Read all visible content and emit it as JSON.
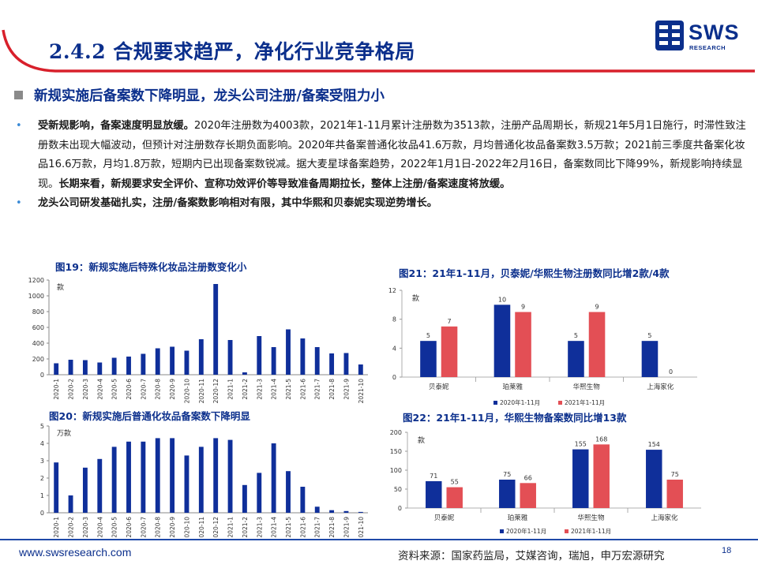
{
  "header": {
    "title": "2.4.2 合规要求趋严，净化行业竞争格局",
    "logo_text": "SWS",
    "logo_sub": "RESEARCH"
  },
  "subtitle": "新规实施后备案数下降明显，龙头公司注册/备案受阻力小",
  "bullets": [
    {
      "bold_lead": "受新规影响，备案速度明显放缓。",
      "body": "2020年注册数为4003款，2021年1-11月累计注册数为3513款，注册产品周期长，新规21年5月1日施行，时滞性致注册数未出现大幅波动，但预计对注册数存长期负面影响。2020年共备案普通化妆品41.6万款，月均普通化妆品备案数3.5万款；2021前三季度共备案化妆品16.6万款，月均1.8万款，短期内已出现备案数锐减。据大麦星球备案趋势，2022年1月1日-2022年2月16日，备案数同比下降99%，新规影响持续显现。",
      "bold_tail": "长期来看，新规要求安全评价、宣称功效评价等导致准备周期拉长，整体上注册/备案速度将放缓。"
    },
    {
      "bold_lead": "龙头公司研发基础扎实，注册/备案数影响相对有限，其中华熙和贝泰妮实现逆势增长。",
      "body": "",
      "bold_tail": ""
    }
  ],
  "chart_data": [
    {
      "id": "fig19",
      "type": "bar",
      "title": "图19：新规实施后特殊化妆品注册数变化小",
      "unit_label": "款",
      "color": "#0f2f9a",
      "categories": [
        "2020-1",
        "2020-2",
        "2020-3",
        "2020-4",
        "2020-5",
        "2020-6",
        "2020-7",
        "2020-8",
        "2020-9",
        "2020-10",
        "2020-11",
        "2020-12",
        "2021-1",
        "2021-2",
        "2021-3",
        "2021-4",
        "2021-5",
        "2021-6",
        "2021-7",
        "2021-8",
        "2021-9",
        "2021-10"
      ],
      "values": [
        145,
        190,
        185,
        155,
        215,
        230,
        265,
        335,
        355,
        305,
        450,
        1150,
        440,
        30,
        490,
        350,
        575,
        460,
        350,
        270,
        275,
        130
      ],
      "ylim": [
        0,
        1200
      ],
      "yticks": [
        "0",
        "200",
        "400",
        "600",
        "800",
        "1000",
        "1200"
      ]
    },
    {
      "id": "fig20",
      "type": "bar",
      "title": "图20：新规实施后普通化妆品备案数下降明显",
      "unit_label": "万款",
      "color": "#0f2f9a",
      "categories": [
        "2020-1",
        "2020-2",
        "2020-3",
        "2020-4",
        "2020-5",
        "2020-6",
        "2020-7",
        "2020-8",
        "2020-9",
        "2020-10",
        "2020-11",
        "2020-12",
        "2021-1",
        "2021-2",
        "2021-3",
        "2021-4",
        "2021-5",
        "2021-6",
        "2021-7",
        "2021-8",
        "2021-9",
        "2021-10"
      ],
      "values": [
        2.9,
        1.0,
        2.6,
        3.1,
        3.8,
        4.1,
        4.1,
        4.3,
        4.3,
        3.3,
        3.8,
        4.3,
        4.2,
        1.6,
        2.3,
        4.0,
        2.4,
        1.5,
        0.35,
        0.15,
        0.1,
        0.05
      ],
      "ylim": [
        0,
        5
      ],
      "yticks": [
        "0",
        "1",
        "2",
        "3",
        "4",
        "5"
      ]
    },
    {
      "id": "fig21",
      "type": "bar",
      "title": "图21：21年1-11月，贝泰妮/华熙生物注册数同比增2款/4款",
      "unit_label": "款",
      "categories": [
        "贝泰妮",
        "珀莱雅",
        "华熙生物",
        "上海家化"
      ],
      "series": [
        {
          "name": "2020年1-11月",
          "color": "#0f2f9a",
          "values": [
            5,
            10,
            5,
            5
          ]
        },
        {
          "name": "2021年1-11月",
          "color": "#e34f55",
          "values": [
            7,
            9,
            9,
            0
          ]
        }
      ],
      "ylim": [
        0,
        12
      ],
      "yticks": [
        "0",
        "4",
        "8",
        "12"
      ],
      "legend": "bottom"
    },
    {
      "id": "fig22",
      "type": "bar",
      "title": "图22：21年1-11月，华熙生物备案数同比增13款",
      "unit_label": "款",
      "categories": [
        "贝泰妮",
        "珀莱雅",
        "华熙生物",
        "上海家化"
      ],
      "series": [
        {
          "name": "2020年1-11月",
          "color": "#0f2f9a",
          "values": [
            71,
            75,
            155,
            154
          ]
        },
        {
          "name": "2021年1-11月",
          "color": "#e34f55",
          "values": [
            55,
            66,
            168,
            75
          ]
        }
      ],
      "ylim": [
        0,
        200
      ],
      "yticks": [
        "0",
        "50",
        "100",
        "150",
        "200"
      ],
      "legend": "bottom"
    }
  ],
  "footer": {
    "url": "www.swsresearch.com",
    "source": "资料来源：国家药监局，艾媒咨询，瑞旭，申万宏源研究",
    "page": "18"
  },
  "colors": {
    "brand": "#0b2f8c",
    "accent_red": "#d8202b",
    "series_blue": "#0f2f9a",
    "series_red": "#e34f55"
  }
}
